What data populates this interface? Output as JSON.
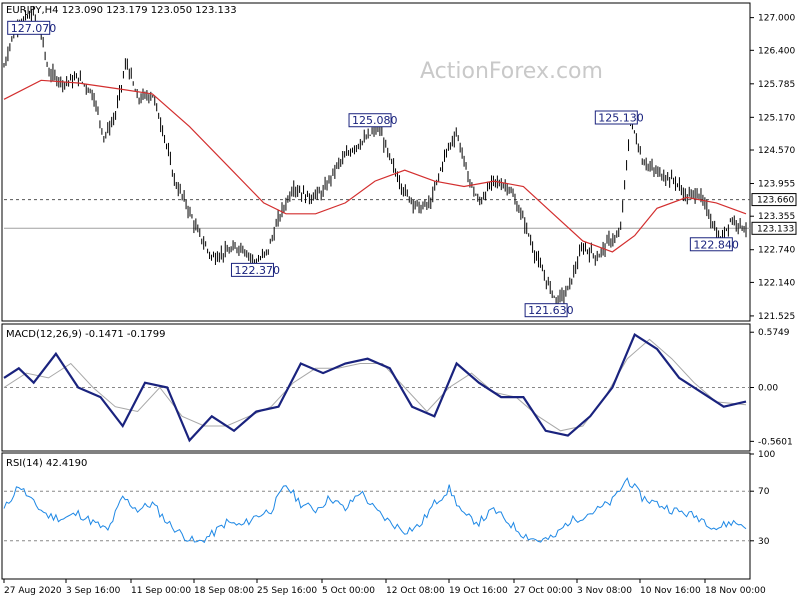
{
  "chart_data": [
    {
      "type": "candlestick",
      "header": "EURJPY,H4  123.090 123.179 123.050 123.133",
      "symbol": "EURJPY",
      "timeframe": "H4",
      "ohlc_last": {
        "open": 123.09,
        "high": 123.179,
        "low": 123.05,
        "close": 123.133
      },
      "watermark": "ActionForex.com",
      "ylim": [
        121.45,
        127.25
      ],
      "yticks": [
        "127.000",
        "126.400",
        "125.785",
        "125.170",
        "124.570",
        "123.955",
        "123.355",
        "122.740",
        "122.140",
        "121.525"
      ],
      "current_price": "123.133",
      "dashed_level": "123.660",
      "x_labels": [
        "27 Aug 2020",
        "3 Sep 16:00",
        "11 Sep 00:00",
        "18 Sep 08:00",
        "25 Sep 16:00",
        "5 Oct 00:00",
        "12 Oct 08:00",
        "19 Oct 16:00",
        "27 Oct 00:00",
        "3 Nov 08:00",
        "10 Nov 16:00",
        "18 Nov 00:00"
      ],
      "annotations": [
        {
          "text": "127.070",
          "x_label": "27 Aug 2020",
          "y": 127.07
        },
        {
          "text": "122.370",
          "x_label": "18 Sep 08:00",
          "y": 122.37
        },
        {
          "text": "125.080",
          "x_label": "5 Oct 00:00",
          "y": 125.08
        },
        {
          "text": "121.630",
          "x_label": "27 Oct 00:00",
          "y": 121.63
        },
        {
          "text": "125.130",
          "x_label": "3 Nov 08:00",
          "y": 125.13
        },
        {
          "text": "122.840",
          "x_label": "18 Nov 00:00",
          "y": 122.84
        }
      ],
      "price_path": [
        [
          0,
          126.1
        ],
        [
          0.01,
          126.6
        ],
        [
          0.02,
          126.9
        ],
        [
          0.04,
          127.07
        ],
        [
          0.05,
          126.7
        ],
        [
          0.06,
          126.0
        ],
        [
          0.08,
          125.8
        ],
        [
          0.1,
          125.9
        ],
        [
          0.12,
          125.6
        ],
        [
          0.135,
          124.8
        ],
        [
          0.15,
          125.2
        ],
        [
          0.165,
          126.2
        ],
        [
          0.18,
          125.5
        ],
        [
          0.2,
          125.6
        ],
        [
          0.215,
          124.9
        ],
        [
          0.23,
          124.0
        ],
        [
          0.245,
          123.6
        ],
        [
          0.26,
          123.1
        ],
        [
          0.28,
          122.6
        ],
        [
          0.3,
          122.7
        ],
        [
          0.32,
          122.8
        ],
        [
          0.34,
          122.5
        ],
        [
          0.355,
          122.7
        ],
        [
          0.37,
          123.3
        ],
        [
          0.39,
          123.9
        ],
        [
          0.41,
          123.7
        ],
        [
          0.43,
          123.8
        ],
        [
          0.45,
          124.3
        ],
        [
          0.47,
          124.6
        ],
        [
          0.49,
          124.8
        ],
        [
          0.505,
          125.0
        ],
        [
          0.52,
          124.4
        ],
        [
          0.54,
          123.8
        ],
        [
          0.56,
          123.5
        ],
        [
          0.575,
          123.6
        ],
        [
          0.595,
          124.5
        ],
        [
          0.61,
          124.9
        ],
        [
          0.625,
          124.1
        ],
        [
          0.64,
          123.6
        ],
        [
          0.66,
          124.0
        ],
        [
          0.68,
          123.9
        ],
        [
          0.7,
          123.3
        ],
        [
          0.715,
          122.7
        ],
        [
          0.73,
          122.2
        ],
        [
          0.745,
          121.8
        ],
        [
          0.76,
          122.0
        ],
        [
          0.78,
          122.8
        ],
        [
          0.8,
          122.6
        ],
        [
          0.815,
          122.9
        ],
        [
          0.83,
          123.0
        ],
        [
          0.845,
          125.13
        ],
        [
          0.86,
          124.4
        ],
        [
          0.875,
          124.2
        ],
        [
          0.89,
          124.1
        ],
        [
          0.905,
          124.0
        ],
        [
          0.92,
          123.7
        ],
        [
          0.935,
          123.8
        ],
        [
          0.95,
          123.4
        ],
        [
          0.965,
          122.9
        ],
        [
          0.98,
          123.3
        ],
        [
          1.0,
          123.133
        ]
      ],
      "ma_path": [
        [
          0,
          125.5
        ],
        [
          0.05,
          125.85
        ],
        [
          0.1,
          125.8
        ],
        [
          0.15,
          125.7
        ],
        [
          0.2,
          125.6
        ],
        [
          0.25,
          125.0
        ],
        [
          0.3,
          124.3
        ],
        [
          0.35,
          123.6
        ],
        [
          0.38,
          123.4
        ],
        [
          0.42,
          123.4
        ],
        [
          0.46,
          123.6
        ],
        [
          0.5,
          124.0
        ],
        [
          0.54,
          124.2
        ],
        [
          0.58,
          124.0
        ],
        [
          0.62,
          123.9
        ],
        [
          0.66,
          124.0
        ],
        [
          0.7,
          123.9
        ],
        [
          0.74,
          123.4
        ],
        [
          0.78,
          122.9
        ],
        [
          0.82,
          122.7
        ],
        [
          0.85,
          123.0
        ],
        [
          0.88,
          123.5
        ],
        [
          0.92,
          123.7
        ],
        [
          0.96,
          123.6
        ],
        [
          1.0,
          123.4
        ]
      ]
    },
    {
      "type": "line",
      "title": "MACD(12,26,9) -0.1471 -0.1799",
      "ylim": [
        -0.65,
        0.65
      ],
      "yticks": [
        "0.5749",
        "0.00",
        "-0.5601"
      ],
      "series": [
        {
          "name": "MACD",
          "color": "#1a237e",
          "values": [
            [
              0,
              0.1
            ],
            [
              0.02,
              0.2
            ],
            [
              0.04,
              0.05
            ],
            [
              0.07,
              0.35
            ],
            [
              0.1,
              0.0
            ],
            [
              0.13,
              -0.1
            ],
            [
              0.16,
              -0.4
            ],
            [
              0.19,
              0.05
            ],
            [
              0.22,
              0.0
            ],
            [
              0.25,
              -0.55
            ],
            [
              0.28,
              -0.3
            ],
            [
              0.31,
              -0.45
            ],
            [
              0.34,
              -0.25
            ],
            [
              0.37,
              -0.2
            ],
            [
              0.4,
              0.25
            ],
            [
              0.43,
              0.15
            ],
            [
              0.46,
              0.25
            ],
            [
              0.49,
              0.3
            ],
            [
              0.52,
              0.2
            ],
            [
              0.55,
              -0.2
            ],
            [
              0.58,
              -0.3
            ],
            [
              0.61,
              0.25
            ],
            [
              0.64,
              0.05
            ],
            [
              0.67,
              -0.1
            ],
            [
              0.7,
              -0.1
            ],
            [
              0.73,
              -0.45
            ],
            [
              0.76,
              -0.5
            ],
            [
              0.79,
              -0.3
            ],
            [
              0.82,
              0.0
            ],
            [
              0.85,
              0.55
            ],
            [
              0.88,
              0.4
            ],
            [
              0.91,
              0.1
            ],
            [
              0.94,
              -0.05
            ],
            [
              0.97,
              -0.2
            ],
            [
              1.0,
              -0.1471
            ]
          ]
        },
        {
          "name": "Signal",
          "color": "#a8a8a8",
          "values": [
            [
              0,
              0.0
            ],
            [
              0.03,
              0.15
            ],
            [
              0.06,
              0.1
            ],
            [
              0.09,
              0.25
            ],
            [
              0.12,
              0.0
            ],
            [
              0.15,
              -0.2
            ],
            [
              0.18,
              -0.25
            ],
            [
              0.21,
              0.0
            ],
            [
              0.24,
              -0.3
            ],
            [
              0.27,
              -0.4
            ],
            [
              0.3,
              -0.4
            ],
            [
              0.33,
              -0.3
            ],
            [
              0.36,
              -0.2
            ],
            [
              0.39,
              0.05
            ],
            [
              0.42,
              0.2
            ],
            [
              0.45,
              0.2
            ],
            [
              0.48,
              0.25
            ],
            [
              0.51,
              0.25
            ],
            [
              0.54,
              0.0
            ],
            [
              0.57,
              -0.25
            ],
            [
              0.6,
              0.0
            ],
            [
              0.63,
              0.15
            ],
            [
              0.66,
              -0.05
            ],
            [
              0.69,
              -0.1
            ],
            [
              0.72,
              -0.3
            ],
            [
              0.75,
              -0.45
            ],
            [
              0.78,
              -0.4
            ],
            [
              0.81,
              -0.1
            ],
            [
              0.84,
              0.3
            ],
            [
              0.87,
              0.5
            ],
            [
              0.9,
              0.3
            ],
            [
              0.93,
              0.05
            ],
            [
              0.96,
              -0.15
            ],
            [
              1.0,
              -0.1799
            ]
          ]
        }
      ]
    },
    {
      "type": "line",
      "title": "RSI(14) 42.4190",
      "ylim": [
        0,
        100
      ],
      "yticks": [
        "100",
        "70",
        "30"
      ],
      "levels": [
        70,
        30
      ],
      "series": [
        {
          "name": "RSI",
          "color": "#1e88e5",
          "values": [
            [
              0,
              55
            ],
            [
              0.02,
              75
            ],
            [
              0.04,
              60
            ],
            [
              0.06,
              50
            ],
            [
              0.08,
              48
            ],
            [
              0.1,
              52
            ],
            [
              0.12,
              45
            ],
            [
              0.14,
              38
            ],
            [
              0.16,
              65
            ],
            [
              0.18,
              55
            ],
            [
              0.2,
              60
            ],
            [
              0.22,
              45
            ],
            [
              0.24,
              35
            ],
            [
              0.26,
              28
            ],
            [
              0.28,
              35
            ],
            [
              0.3,
              45
            ],
            [
              0.32,
              42
            ],
            [
              0.34,
              50
            ],
            [
              0.36,
              55
            ],
            [
              0.38,
              75
            ],
            [
              0.4,
              60
            ],
            [
              0.42,
              55
            ],
            [
              0.44,
              65
            ],
            [
              0.46,
              55
            ],
            [
              0.48,
              70
            ],
            [
              0.5,
              55
            ],
            [
              0.52,
              45
            ],
            [
              0.54,
              38
            ],
            [
              0.56,
              42
            ],
            [
              0.58,
              60
            ],
            [
              0.6,
              72
            ],
            [
              0.62,
              50
            ],
            [
              0.64,
              45
            ],
            [
              0.66,
              55
            ],
            [
              0.68,
              45
            ],
            [
              0.7,
              35
            ],
            [
              0.72,
              30
            ],
            [
              0.74,
              32
            ],
            [
              0.76,
              45
            ],
            [
              0.78,
              50
            ],
            [
              0.8,
              55
            ],
            [
              0.82,
              62
            ],
            [
              0.84,
              80
            ],
            [
              0.86,
              65
            ],
            [
              0.88,
              60
            ],
            [
              0.9,
              55
            ],
            [
              0.92,
              52
            ],
            [
              0.94,
              48
            ],
            [
              0.96,
              40
            ],
            [
              0.98,
              45
            ],
            [
              1.0,
              42.4
            ]
          ]
        }
      ]
    }
  ]
}
